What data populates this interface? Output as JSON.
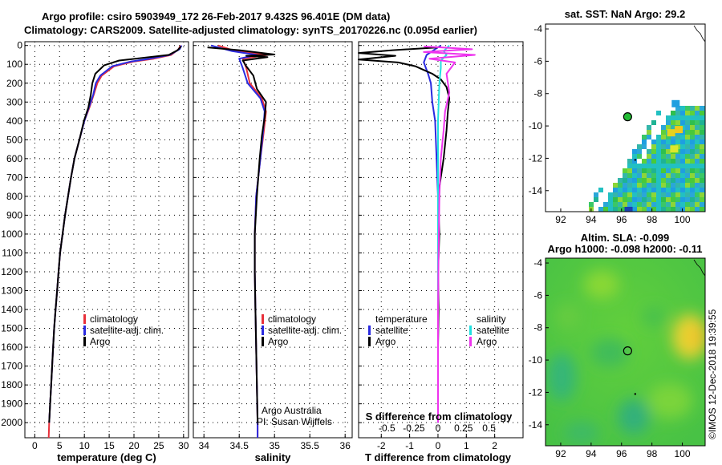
{
  "title": {
    "line1": "Argo profile: csiro 5903949_172 26-Feb-2017 9.432S 96.401E (DM data)",
    "line2": "Climatology: CARS2009. Satellite-adjusted climatology: synTS_20170226.nc (0.095d earlier)"
  },
  "watermark": "©IMOS 12-Dec-2018 19:39:55",
  "credit": {
    "line1": "Argo Australia",
    "line2": "PI: Susan Wijffels"
  },
  "colors": {
    "climatology": "#e8303a",
    "satellite": "#2a2ae0",
    "argo": "#000000",
    "sal_satellite": "#20e0e0",
    "sal_argo": "#ee33ee"
  },
  "chart_data": [
    {
      "type": "line",
      "id": "temperature-profile",
      "xlabel": "temperature (deg C)",
      "ylabel": "depth",
      "xlim": [
        -2,
        31
      ],
      "ylim": [
        2080,
        -20
      ],
      "xticks": [
        0,
        5,
        10,
        15,
        20,
        25,
        30
      ],
      "yticks": [
        0,
        100,
        200,
        300,
        400,
        500,
        600,
        700,
        800,
        900,
        1000,
        1100,
        1200,
        1300,
        1400,
        1500,
        1600,
        1700,
        1800,
        1900,
        2000
      ],
      "legend": [
        "climatology",
        "satellite-adj. clim.",
        "Argo"
      ],
      "series": [
        {
          "name": "climatology",
          "color": "#e8303a",
          "points": [
            [
              29.4,
              0
            ],
            [
              29.0,
              20
            ],
            [
              27.5,
              50
            ],
            [
              24.0,
              70
            ],
            [
              20.0,
              85
            ],
            [
              16.0,
              110
            ],
            [
              13.5,
              160
            ],
            [
              12.6,
              200
            ],
            [
              11.9,
              260
            ],
            [
              11.0,
              330
            ],
            [
              10.0,
              400
            ],
            [
              9.0,
              500
            ],
            [
              8.0,
              600
            ],
            [
              7.3,
              700
            ],
            [
              6.7,
              800
            ],
            [
              6.1,
              900
            ],
            [
              5.6,
              1000
            ],
            [
              5.1,
              1100
            ],
            [
              4.8,
              1200
            ],
            [
              4.5,
              1300
            ],
            [
              4.2,
              1400
            ],
            [
              3.9,
              1500
            ],
            [
              3.7,
              1600
            ],
            [
              3.5,
              1700
            ],
            [
              3.3,
              1800
            ],
            [
              3.1,
              1900
            ],
            [
              2.9,
              2000
            ],
            [
              2.8,
              2080
            ]
          ]
        },
        {
          "name": "satellite-adj. clim.",
          "color": "#2a2ae0",
          "points": [
            [
              29.6,
              0
            ],
            [
              29.2,
              20
            ],
            [
              27.2,
              50
            ],
            [
              23.2,
              70
            ],
            [
              19.4,
              85
            ],
            [
              15.6,
              110
            ],
            [
              13.2,
              160
            ],
            [
              12.3,
              200
            ],
            [
              11.8,
              260
            ],
            [
              10.9,
              330
            ],
            [
              10.0,
              400
            ],
            [
              9.0,
              500
            ],
            [
              8.0,
              600
            ],
            [
              7.3,
              700
            ],
            [
              6.7,
              800
            ],
            [
              6.1,
              900
            ],
            [
              5.6,
              1000
            ],
            [
              5.1,
              1100
            ],
            [
              4.8,
              1200
            ],
            [
              4.5,
              1300
            ],
            [
              4.2,
              1400
            ],
            [
              3.9,
              1500
            ],
            [
              3.7,
              1600
            ],
            [
              3.5,
              1700
            ],
            [
              3.3,
              1800
            ],
            [
              3.1,
              1900
            ],
            [
              2.9,
              2000
            ]
          ]
        },
        {
          "name": "Argo",
          "color": "#000000",
          "points": [
            [
              29.5,
              5
            ],
            [
              28.8,
              25
            ],
            [
              27.0,
              50
            ],
            [
              21.0,
              68
            ],
            [
              17.0,
              80
            ],
            [
              14.0,
              105
            ],
            [
              12.2,
              150
            ],
            [
              11.6,
              200
            ],
            [
              11.3,
              260
            ],
            [
              10.8,
              330
            ],
            [
              9.9,
              400
            ],
            [
              9.0,
              500
            ],
            [
              8.0,
              600
            ],
            [
              7.3,
              700
            ],
            [
              6.7,
              800
            ],
            [
              6.1,
              900
            ],
            [
              5.6,
              1000
            ],
            [
              5.1,
              1100
            ],
            [
              4.8,
              1200
            ],
            [
              4.5,
              1300
            ],
            [
              4.2,
              1400
            ],
            [
              3.9,
              1500
            ],
            [
              3.7,
              1600
            ],
            [
              3.5,
              1700
            ],
            [
              3.3,
              1800
            ],
            [
              3.1,
              1900
            ],
            [
              2.9,
              2000
            ]
          ]
        }
      ]
    },
    {
      "type": "line",
      "id": "salinity-profile",
      "xlabel": "salinity",
      "xlim": [
        33.85,
        36.1
      ],
      "ylim": [
        2080,
        -20
      ],
      "xticks": [
        34,
        34.5,
        35,
        35.5,
        36
      ],
      "legend": [
        "climatology",
        "satellite-adj. clim.",
        "Argo"
      ],
      "series": [
        {
          "name": "climatology",
          "color": "#e8303a",
          "points": [
            [
              34.2,
              0
            ],
            [
              34.45,
              30
            ],
            [
              34.9,
              50
            ],
            [
              34.55,
              70
            ],
            [
              34.6,
              120
            ],
            [
              34.65,
              200
            ],
            [
              34.82,
              280
            ],
            [
              34.88,
              350
            ],
            [
              34.85,
              450
            ],
            [
              34.8,
              600
            ],
            [
              34.74,
              800
            ],
            [
              34.72,
              1000
            ],
            [
              34.72,
              1200
            ],
            [
              34.73,
              1400
            ],
            [
              34.74,
              1600
            ],
            [
              34.75,
              1800
            ],
            [
              34.76,
              2000
            ],
            [
              34.76,
              2080
            ]
          ]
        },
        {
          "name": "satellite-adj. clim.",
          "color": "#2a2ae0",
          "points": [
            [
              34.1,
              0
            ],
            [
              34.4,
              30
            ],
            [
              34.75,
              50
            ],
            [
              34.5,
              70
            ],
            [
              34.55,
              120
            ],
            [
              34.62,
              200
            ],
            [
              34.8,
              280
            ],
            [
              34.86,
              350
            ],
            [
              34.84,
              450
            ],
            [
              34.8,
              600
            ],
            [
              34.74,
              800
            ],
            [
              34.72,
              1000
            ],
            [
              34.72,
              1200
            ],
            [
              34.73,
              1400
            ],
            [
              34.74,
              1600
            ],
            [
              34.75,
              1800
            ],
            [
              34.76,
              2000
            ],
            [
              34.76,
              2080
            ]
          ]
        },
        {
          "name": "Argo",
          "color": "#000000",
          "points": [
            [
              34.05,
              10
            ],
            [
              34.5,
              25
            ],
            [
              35.0,
              48
            ],
            [
              34.6,
              55
            ],
            [
              34.9,
              62
            ],
            [
              34.55,
              80
            ],
            [
              34.6,
              110
            ],
            [
              34.7,
              160
            ],
            [
              34.75,
              230
            ],
            [
              34.88,
              300
            ],
            [
              34.86,
              380
            ],
            [
              34.82,
              480
            ],
            [
              34.79,
              600
            ],
            [
              34.75,
              800
            ],
            [
              34.72,
              1000
            ],
            [
              34.72,
              1200
            ],
            [
              34.73,
              1400
            ],
            [
              34.74,
              1600
            ],
            [
              34.75,
              1800
            ],
            [
              34.76,
              2000
            ]
          ]
        }
      ]
    },
    {
      "type": "line",
      "id": "difference-profile",
      "xlabel": "T difference from climatology",
      "xlabel_top": "S difference from climatology",
      "xlim": [
        -2.8,
        3.0
      ],
      "ylim": [
        2080,
        -20
      ],
      "xticks": [
        -2,
        -1,
        0,
        1,
        2
      ],
      "xticks_top_labels": [
        "-0.5",
        "-0.25",
        "0",
        "0.25",
        "0.5"
      ],
      "legend": {
        "temperature_heading": "temperature",
        "salinity_heading": "salinity",
        "satellite": "satellite",
        "argo": "Argo"
      },
      "series": [
        {
          "name": "T satellite",
          "color": "#2a2ae0",
          "points": [
            [
              0.1,
              0
            ],
            [
              -0.4,
              50
            ],
            [
              -0.5,
              90
            ],
            [
              -0.35,
              150
            ],
            [
              -0.25,
              200
            ],
            [
              -0.2,
              300
            ],
            [
              -0.1,
              400
            ],
            [
              -0.05,
              600
            ],
            [
              0,
              800
            ],
            [
              0,
              2000
            ]
          ]
        },
        {
          "name": "T Argo",
          "color": "#000000",
          "points": [
            [
              0,
              10
            ],
            [
              -1.6,
              25
            ],
            [
              -2.8,
              40
            ],
            [
              -1.5,
              55
            ],
            [
              -2.8,
              75
            ],
            [
              -1.4,
              90
            ],
            [
              -0.8,
              110
            ],
            [
              -0.5,
              130
            ],
            [
              -0.2,
              150
            ],
            [
              0.1,
              180
            ],
            [
              0.3,
              220
            ],
            [
              0.4,
              280
            ],
            [
              0.35,
              350
            ],
            [
              0.3,
              450
            ],
            [
              0.2,
              600
            ],
            [
              0.1,
              700
            ],
            [
              0,
              800
            ],
            [
              0.05,
              1000
            ],
            [
              0,
              1200
            ],
            [
              0.02,
              1400
            ],
            [
              0,
              1600
            ],
            [
              0,
              2000
            ]
          ]
        },
        {
          "name": "S satellite",
          "color": "#20e0e0",
          "points": [
            [
              0.4,
              0
            ],
            [
              0.2,
              30
            ],
            [
              0.3,
              50
            ],
            [
              0.1,
              80
            ],
            [
              0.1,
              120
            ],
            [
              0.05,
              200
            ],
            [
              0,
              400
            ],
            [
              0,
              2000
            ]
          ]
        },
        {
          "name": "S Argo",
          "color": "#ee33ee",
          "points": [
            [
              -0.5,
              5
            ],
            [
              1.2,
              20
            ],
            [
              -0.5,
              35
            ],
            [
              1.3,
              50
            ],
            [
              -0.3,
              70
            ],
            [
              0.6,
              90
            ],
            [
              0.3,
              150
            ],
            [
              0.4,
              250
            ],
            [
              0.25,
              350
            ],
            [
              0.2,
              450
            ],
            [
              0.1,
              600
            ],
            [
              0.05,
              800
            ],
            [
              0.02,
              1100
            ],
            [
              0,
              1400
            ],
            [
              0,
              2000
            ]
          ]
        }
      ]
    },
    {
      "type": "heatmap",
      "id": "sst-map",
      "title": "sat. SST: NaN Argo: 29.2",
      "xlim": [
        91,
        101.5
      ],
      "ylim": [
        -15.3,
        -3.7
      ],
      "xticks": [
        92,
        94,
        96,
        98,
        100
      ],
      "yticks": [
        -4,
        -6,
        -8,
        -10,
        -12,
        -14
      ],
      "argo_position": [
        96.401,
        -9.432
      ]
    },
    {
      "type": "heatmap",
      "id": "sla-map",
      "title_line1": "Altim. SLA: -0.099",
      "title_line2": "Argo h1000: -0.098 h2000: -0.11",
      "xlim": [
        91,
        101.5
      ],
      "ylim": [
        -15.3,
        -3.7
      ],
      "xticks": [
        92,
        94,
        96,
        98,
        100
      ],
      "yticks": [
        -4,
        -6,
        -8,
        -10,
        -12,
        -14
      ],
      "argo_position": [
        96.401,
        -9.432
      ]
    }
  ]
}
